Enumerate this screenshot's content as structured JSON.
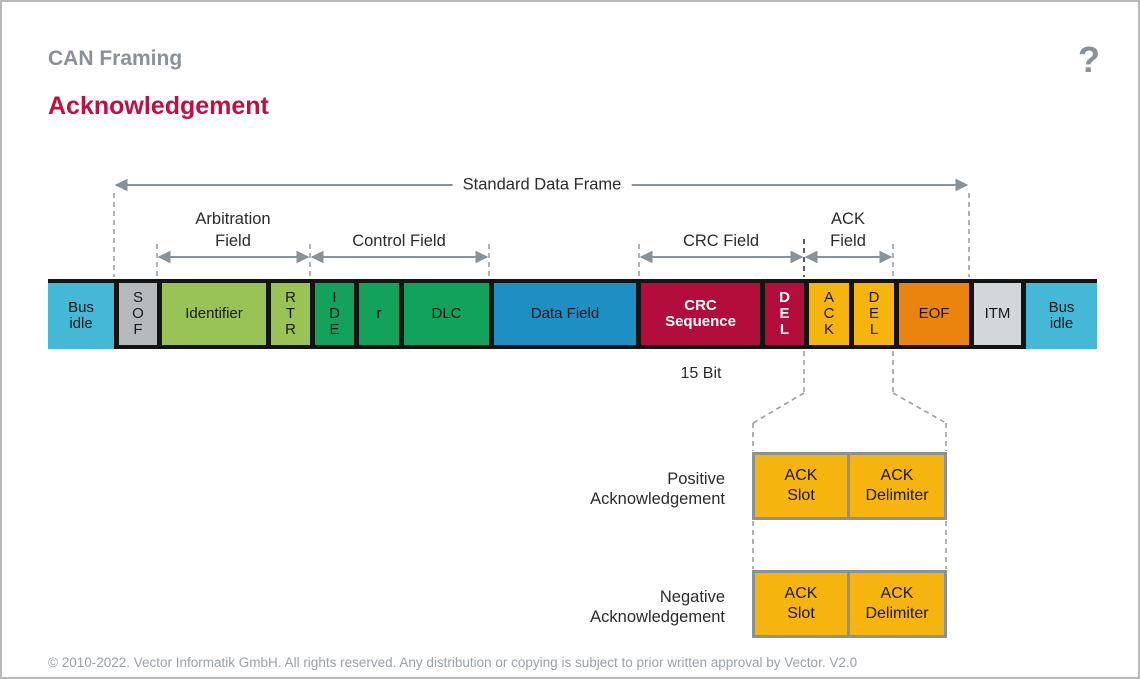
{
  "header": {
    "breadcrumb": "CAN Framing",
    "title": "Acknowledgement",
    "help_label": "?"
  },
  "frame": {
    "top_arrow_label": "Standard Data Frame",
    "field_arrows": [
      {
        "label": "Arbitration\nField"
      },
      {
        "label": "Control Field"
      },
      {
        "label": "CRC Field"
      },
      {
        "label": "ACK\nField"
      }
    ],
    "segments": [
      {
        "name": "bus-idle-left",
        "label": "Bus\nidle",
        "color": "#44b8d6",
        "text": "#1a1a1a",
        "bold": false,
        "width": 66
      },
      {
        "name": "sof",
        "label": "S\nO\nF",
        "color": "#b7babc",
        "text": "#1a1a1a",
        "bold": false,
        "width": 43
      },
      {
        "name": "identifier",
        "label": "Identifier",
        "color": "#9ac356",
        "text": "#1a1a1a",
        "bold": false,
        "width": 109
      },
      {
        "name": "rtr",
        "label": "R\nT\nR",
        "color": "#9ac356",
        "text": "#1a1a1a",
        "bold": false,
        "width": 44
      },
      {
        "name": "ide",
        "label": "I\nD\nE",
        "color": "#12a25c",
        "text": "#1a1a1a",
        "bold": false,
        "width": 44
      },
      {
        "name": "r-bit",
        "label": "r",
        "color": "#12a25c",
        "text": "#1a1a1a",
        "bold": false,
        "width": 45
      },
      {
        "name": "dlc",
        "label": "DLC",
        "color": "#12a25c",
        "text": "#1a1a1a",
        "bold": false,
        "width": 90
      },
      {
        "name": "data-field",
        "label": "Data Field",
        "color": "#1e8fc2",
        "text": "#1a1a1a",
        "bold": false,
        "width": 147
      },
      {
        "name": "crc-sequence",
        "label": "CRC\nSequence",
        "color": "#b30d3c",
        "text": "#ffffff",
        "bold": true,
        "width": 124
      },
      {
        "name": "crc-delimiter",
        "label": "D\nE\nL",
        "color": "#b30d3c",
        "text": "#ffffff",
        "bold": true,
        "width": 44
      },
      {
        "name": "ack-slot",
        "label": "A\nC\nK",
        "color": "#f6b40f",
        "text": "#1a1a1a",
        "bold": false,
        "width": 45
      },
      {
        "name": "ack-delimiter",
        "label": "D\nE\nL",
        "color": "#f6b40f",
        "text": "#1a1a1a",
        "bold": false,
        "width": 45
      },
      {
        "name": "eof",
        "label": "EOF",
        "color": "#ea840f",
        "text": "#1a1a1a",
        "bold": false,
        "width": 75
      },
      {
        "name": "itm",
        "label": "ITM",
        "color": "#d4d7d9",
        "text": "#1a1a1a",
        "bold": false,
        "width": 57
      },
      {
        "name": "bus-idle-right",
        "label": "Bus\nidle",
        "color": "#44b8d6",
        "text": "#1a1a1a",
        "bold": false,
        "width": 71
      }
    ],
    "crc_bits_label": "15 Bit"
  },
  "ack_detail": {
    "positive_label": "Positive\nAcknowledgement",
    "negative_label": "Negative\nAcknowledgement",
    "slot_label": "ACK\nSlot",
    "delimiter_label": "ACK\nDelimiter"
  },
  "footer": {
    "copyright": "© 2010-2022. Vector Informatik GmbH. All rights reserved. Any distribution or copying is subject to prior written approval by Vector. V2.0"
  },
  "colors": {
    "accent_red": "#c30e3f",
    "heading_gray": "#8b9199",
    "arrow_gray": "#8a9299",
    "bar_border": "#141414",
    "amber": "#f6b40f"
  }
}
